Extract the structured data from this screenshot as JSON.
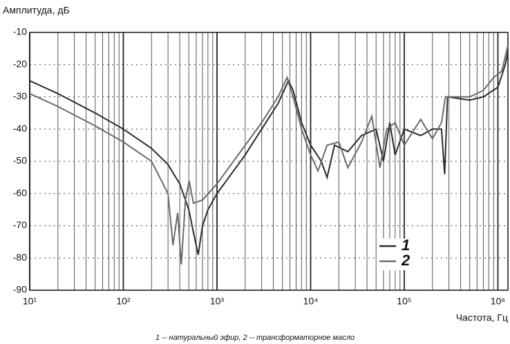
{
  "chart_data": {
    "type": "line",
    "y_label": "Амплитуда, дБ",
    "x_label": "Частота, Гц",
    "caption": "1 -- натуральный эфир, 2 -- трансформаторное масло",
    "log_x": true,
    "grid": true,
    "legend": "lower right",
    "xlim": [
      10,
      1280000
    ],
    "xticks": [
      {
        "value": 10,
        "label": "10¹"
      },
      {
        "value": 100,
        "label": "10²"
      },
      {
        "value": 1000,
        "label": "10³"
      },
      {
        "value": 10000,
        "label": "10⁴"
      },
      {
        "value": 100000,
        "label": "10⁵"
      },
      {
        "value": 1000000,
        "label": "10⁶"
      }
    ],
    "ylim": [
      -90,
      -10
    ],
    "yticks": [
      -90,
      -80,
      -70,
      -60,
      -50,
      -40,
      -30,
      -20,
      -10
    ],
    "series": [
      {
        "name": "1",
        "color": "#2a2a2a",
        "x": [
          10,
          20,
          50,
          100,
          200,
          300,
          400,
          500,
          560,
          630,
          700,
          800,
          1000,
          2000,
          3000,
          4500,
          5800,
          6500,
          8000,
          10000,
          13000,
          15000,
          18000,
          25000,
          35000,
          50000,
          60000,
          70000,
          80000,
          100000,
          150000,
          200000,
          250000,
          270000,
          290000,
          500000,
          700000,
          1000000,
          1200000,
          1280000
        ],
        "values": [
          -25,
          -29,
          -35,
          -40,
          -46,
          -51,
          -57,
          -65,
          -72,
          -79,
          -70,
          -65,
          -60,
          -48,
          -40,
          -32,
          -25,
          -28,
          -38,
          -45,
          -50,
          -55,
          -45,
          -47,
          -42,
          -40,
          -50,
          -38,
          -48,
          -40,
          -42,
          -40,
          -40,
          -54,
          -30,
          -31,
          -30,
          -27,
          -20,
          -16
        ]
      },
      {
        "name": "2",
        "color": "#6a6a6a",
        "x": [
          10,
          20,
          50,
          100,
          200,
          300,
          339,
          380,
          416,
          460,
          505,
          560,
          700,
          1000,
          2000,
          3000,
          4500,
          5600,
          6500,
          8000,
          10000,
          12000,
          15000,
          20000,
          25000,
          35000,
          45000,
          55000,
          65000,
          80000,
          100000,
          150000,
          200000,
          250000,
          275000,
          500000,
          700000,
          900000,
          1100000,
          1280000
        ],
        "values": [
          -29,
          -33,
          -39,
          -44,
          -50,
          -60,
          -76,
          -66,
          -82,
          -62,
          -56,
          -63,
          -62,
          -57,
          -45,
          -38,
          -30,
          -24,
          -30,
          -40,
          -48,
          -53,
          -45,
          -44,
          -52,
          -44,
          -36,
          -52,
          -40,
          -38,
          -45,
          -37,
          -43,
          -38,
          -30,
          -30,
          -28,
          -24,
          -22,
          -14
        ]
      }
    ]
  }
}
